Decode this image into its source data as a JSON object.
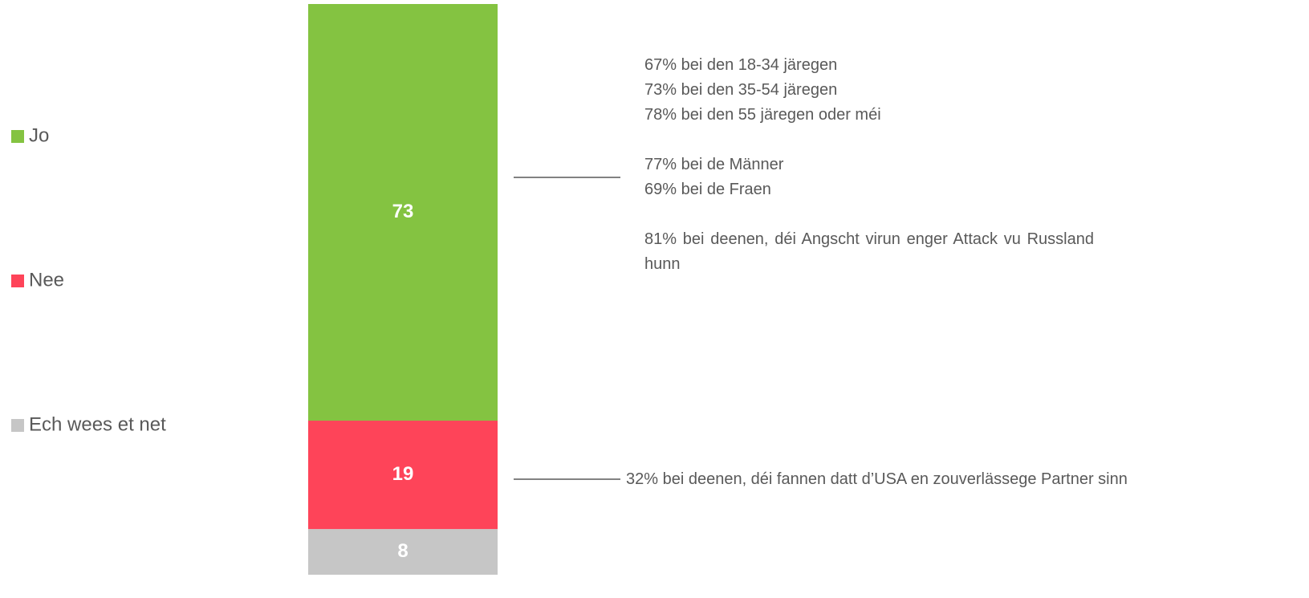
{
  "chart_data": {
    "type": "stacked-bar",
    "series": [
      {
        "name": "Jo",
        "color": "#84c341",
        "values": [
          73
        ]
      },
      {
        "name": "Nee",
        "color": "#fe4459",
        "values": [
          19
        ]
      },
      {
        "name": "Ech wees et net",
        "color": "#c6c6c6",
        "values": [
          8
        ]
      }
    ],
    "ylim": [
      0,
      100
    ],
    "annotations": [
      {
        "paragraphs": [
          [
            "67% bei den 18-34 järegen",
            "73% bei den 35-54 järegen",
            "78% bei den 55 järegen oder méi"
          ],
          [
            "77% bei de Männer",
            "69% bei de Fraen"
          ],
          [
            "81% bei deenen, déi Angscht virun enger Attack vu Russland hunn"
          ]
        ]
      },
      {
        "paragraphs": [
          [
            "32% bei deenen, déi fannen datt d’USA en zouverlässege Partner sinn"
          ]
        ]
      }
    ]
  }
}
